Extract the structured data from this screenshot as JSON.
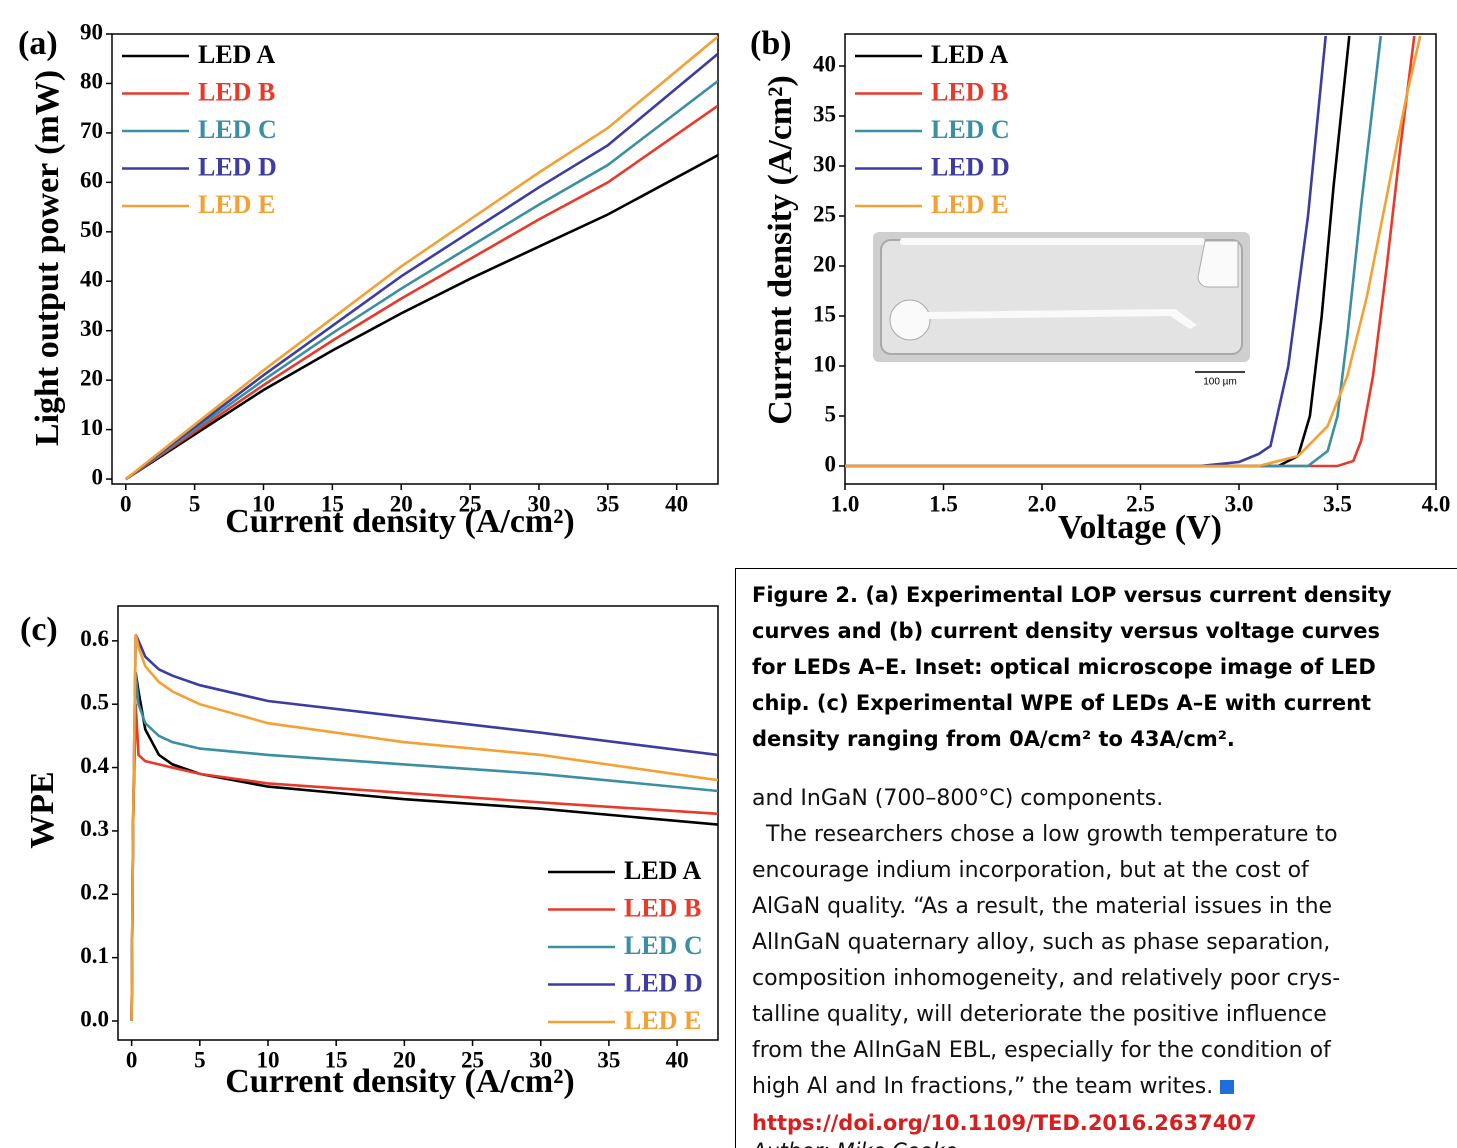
{
  "chart_data": [
    {
      "type": "line",
      "panel_label": "(a)",
      "xlabel": "Current density (A/cm²)",
      "ylabel": "Light output power (mW)",
      "xlim": [
        -1,
        43
      ],
      "ylim": [
        -1,
        90
      ],
      "xticks": [
        0,
        5,
        10,
        15,
        20,
        25,
        30,
        35,
        40
      ],
      "yticks": [
        0,
        10,
        20,
        30,
        40,
        50,
        60,
        70,
        80,
        90
      ],
      "legend": "upper left",
      "x": [
        0,
        5,
        10,
        15,
        20,
        25,
        30,
        35,
        43
      ],
      "series": [
        {
          "name": "LED A",
          "color": "#000000",
          "values": [
            0,
            9,
            18,
            26,
            33.5,
            40.5,
            47,
            53.5,
            65.5
          ]
        },
        {
          "name": "LED B",
          "color": "#e8392a",
          "values": [
            0,
            9.5,
            19,
            28,
            36.5,
            44.5,
            52.5,
            60,
            75.5
          ]
        },
        {
          "name": "LED C",
          "color": "#3a8fa3",
          "values": [
            0,
            10,
            20,
            29.5,
            38.5,
            47,
            55.5,
            63.5,
            80.5
          ]
        },
        {
          "name": "LED D",
          "color": "#3c3ca2",
          "values": [
            0,
            10.5,
            21,
            31,
            41,
            50,
            59,
            67.5,
            86
          ]
        },
        {
          "name": "LED E",
          "color": "#f5a033",
          "values": [
            0,
            11,
            22,
            32.5,
            43,
            52.5,
            62,
            71,
            89.5
          ]
        }
      ]
    },
    {
      "type": "line",
      "panel_label": "(b)",
      "xlabel": "Voltage (V)",
      "ylabel": "Current density (A/cm²)",
      "xlim": [
        1.0,
        4.0
      ],
      "ylim": [
        -1.8,
        43.2
      ],
      "xticks": [
        {
          "value": 1.0,
          "label": "1.0"
        },
        1.5,
        {
          "value": 2.0,
          "label": "2.0"
        },
        2.5,
        {
          "value": 3.0,
          "label": "3.0"
        },
        3.5,
        {
          "value": 4.0,
          "label": "4.0"
        }
      ],
      "yticks": [
        0,
        5,
        10,
        15,
        20,
        25,
        30,
        35,
        40
      ],
      "legend": "upper left",
      "inset_scale_label": "100 µm",
      "series": [
        {
          "name": "LED A",
          "color": "#000000",
          "x": [
            1.0,
            3.2,
            3.3,
            3.36,
            3.42,
            3.48,
            3.56
          ],
          "values": [
            0,
            0,
            1,
            5,
            15,
            28,
            43
          ]
        },
        {
          "name": "LED B",
          "color": "#e8392a",
          "x": [
            1.0,
            3.5,
            3.58,
            3.62,
            3.68,
            3.75,
            3.82,
            3.89
          ],
          "values": [
            0,
            0,
            0.5,
            2.5,
            9,
            20,
            32,
            43
          ]
        },
        {
          "name": "LED C",
          "color": "#3a8fa3",
          "x": [
            1.0,
            3.35,
            3.45,
            3.5,
            3.55,
            3.62,
            3.72
          ],
          "values": [
            0,
            0,
            1.5,
            5,
            13,
            26,
            43
          ]
        },
        {
          "name": "LED D",
          "color": "#3c3ca2",
          "x": [
            1.0,
            2.8,
            3.0,
            3.1,
            3.16,
            3.25,
            3.35,
            3.44
          ],
          "values": [
            0,
            0,
            0.4,
            1.2,
            2,
            10,
            25,
            43
          ]
        },
        {
          "name": "LED E",
          "color": "#f5a033",
          "x": [
            1.0,
            3.1,
            3.3,
            3.45,
            3.55,
            3.65,
            3.75,
            3.85,
            3.92
          ],
          "values": [
            0,
            0,
            1,
            4,
            9,
            17,
            27,
            37,
            43
          ]
        }
      ]
    },
    {
      "type": "line",
      "panel_label": "(c)",
      "xlabel": "Current density (A/cm²)",
      "ylabel": "WPE",
      "xlim": [
        -1,
        43
      ],
      "ylim": [
        -0.03,
        0.655
      ],
      "xticks": [
        0,
        5,
        10,
        15,
        20,
        25,
        30,
        35,
        40
      ],
      "yticks": [
        {
          "value": 0,
          "label": "0.0"
        },
        0.1,
        0.2,
        0.3,
        0.4,
        0.5,
        0.6
      ],
      "legend": "lower right",
      "x": [
        0,
        0.1,
        0.3,
        0.5,
        1,
        2,
        3,
        5,
        10,
        20,
        30,
        43
      ],
      "series": [
        {
          "name": "LED A",
          "color": "#000000",
          "values": [
            0,
            0.3,
            0.55,
            0.52,
            0.46,
            0.42,
            0.405,
            0.39,
            0.37,
            0.35,
            0.335,
            0.31
          ]
        },
        {
          "name": "LED B",
          "color": "#e8392a",
          "values": [
            0,
            0.3,
            0.5,
            0.42,
            0.41,
            0.405,
            0.4,
            0.39,
            0.375,
            0.36,
            0.345,
            0.327
          ]
        },
        {
          "name": "LED C",
          "color": "#3a8fa3",
          "values": [
            0,
            0.3,
            0.55,
            0.5,
            0.47,
            0.45,
            0.44,
            0.43,
            0.42,
            0.405,
            0.39,
            0.363
          ]
        },
        {
          "name": "LED D",
          "color": "#3c3ca2",
          "values": [
            0,
            0.3,
            0.61,
            0.6,
            0.575,
            0.555,
            0.545,
            0.53,
            0.505,
            0.48,
            0.455,
            0.42
          ]
        },
        {
          "name": "LED E",
          "color": "#f5a033",
          "values": [
            0,
            0.3,
            0.61,
            0.59,
            0.56,
            0.535,
            0.52,
            0.5,
            0.47,
            0.44,
            0.42,
            0.38
          ]
        }
      ]
    }
  ],
  "article": {
    "caption_lines": [
      "Figure 2. (a) Experimental LOP versus current density",
      "curves and (b) current density versus voltage curves",
      "for LEDs A–E. Inset: optical microscope image of LED",
      "chip. (c) Experimental WPE of LEDs A–E with current",
      "density ranging from 0A/cm² to 43A/cm²."
    ],
    "body_lines": [
      "and InGaN (700–800°C) components.",
      "The researchers chose a low growth temperature to",
      "encourage indium incorporation, but at the cost of",
      "AlGaN quality. “As a result, the material issues in the",
      "AlInGaN quaternary alloy, such as phase separation,",
      "composition inhomogeneity, and relatively poor crys-",
      "talline quality, will deteriorate the positive influence",
      "from the AlInGaN EBL, especially for the condition of",
      "high Al and In fractions,” the team writes."
    ],
    "link": "https://doi.org/10.1109/TED.2016.2637407",
    "author": "Author: Mike Cooke"
  }
}
